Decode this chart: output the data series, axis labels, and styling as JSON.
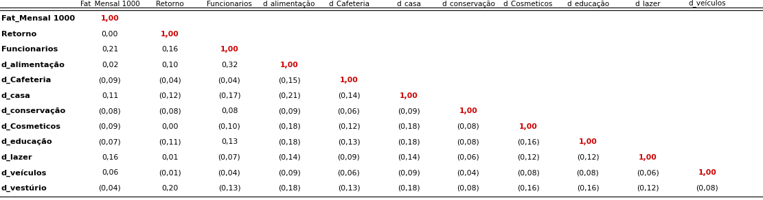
{
  "header": [
    "Fat_Mensal 1000",
    "Retorno",
    "Funcionarios",
    "d_alimentação",
    "d_Cafeteria",
    "d_casa",
    "d_conservação",
    "d_Cosmeticos",
    "d_educação",
    "d_lazer",
    "d_veículos"
  ],
  "row_labels": [
    "Fat_Mensal 1000",
    "Retorno",
    "Funcionarios",
    "d_alimentação",
    "d_Cafeteria",
    "d_casa",
    "d_conservação",
    "d_Cosmeticos",
    "d_educação",
    "d_lazer",
    "d_veículos",
    "d_vestúrio"
  ],
  "cells": [
    [
      "1,00",
      "",
      "",
      "",
      "",
      "",
      "",
      "",
      "",
      "",
      ""
    ],
    [
      "0,00",
      "1,00",
      "",
      "",
      "",
      "",
      "",
      "",
      "",
      "",
      ""
    ],
    [
      "0,21",
      "0,16",
      "1,00",
      "",
      "",
      "",
      "",
      "",
      "",
      "",
      ""
    ],
    [
      "0,02",
      "0,10",
      "0,32",
      "1,00",
      "",
      "",
      "",
      "",
      "",
      "",
      ""
    ],
    [
      "(0,09)",
      "(0,04)",
      "(0,04)",
      "(0,15)",
      "1,00",
      "",
      "",
      "",
      "",
      "",
      ""
    ],
    [
      "0,11",
      "(0,12)",
      "(0,17)",
      "(0,21)",
      "(0,14)",
      "1,00",
      "",
      "",
      "",
      "",
      ""
    ],
    [
      "(0,08)",
      "(0,08)",
      "0,08",
      "(0,09)",
      "(0,06)",
      "(0,09)",
      "1,00",
      "",
      "",
      "",
      ""
    ],
    [
      "(0,09)",
      "0,00",
      "(0,10)",
      "(0,18)",
      "(0,12)",
      "(0,18)",
      "(0,08)",
      "1,00",
      "",
      "",
      ""
    ],
    [
      "(0,07)",
      "(0,11)",
      "0,13",
      "(0,18)",
      "(0,13)",
      "(0,18)",
      "(0,08)",
      "(0,16)",
      "1,00",
      "",
      ""
    ],
    [
      "0,16",
      "0,01",
      "(0,07)",
      "(0,14)",
      "(0,09)",
      "(0,14)",
      "(0,06)",
      "(0,12)",
      "(0,12)",
      "1,00",
      ""
    ],
    [
      "0,06",
      "(0,01)",
      "(0,04)",
      "(0,09)",
      "(0,06)",
      "(0,09)",
      "(0,04)",
      "(0,08)",
      "(0,08)",
      "(0,06)",
      "1,00"
    ],
    [
      "(0,04)",
      "0,20",
      "(0,13)",
      "(0,18)",
      "(0,13)",
      "(0,18)",
      "(0,08)",
      "(0,16)",
      "(0,16)",
      "(0,12)",
      "(0,08)"
    ]
  ],
  "normal_color": "#000000",
  "diag_color": "#cc0000",
  "bg_color": "#ffffff",
  "font_size": 7.8,
  "header_font_size": 7.5,
  "row_label_font_size": 8.2
}
